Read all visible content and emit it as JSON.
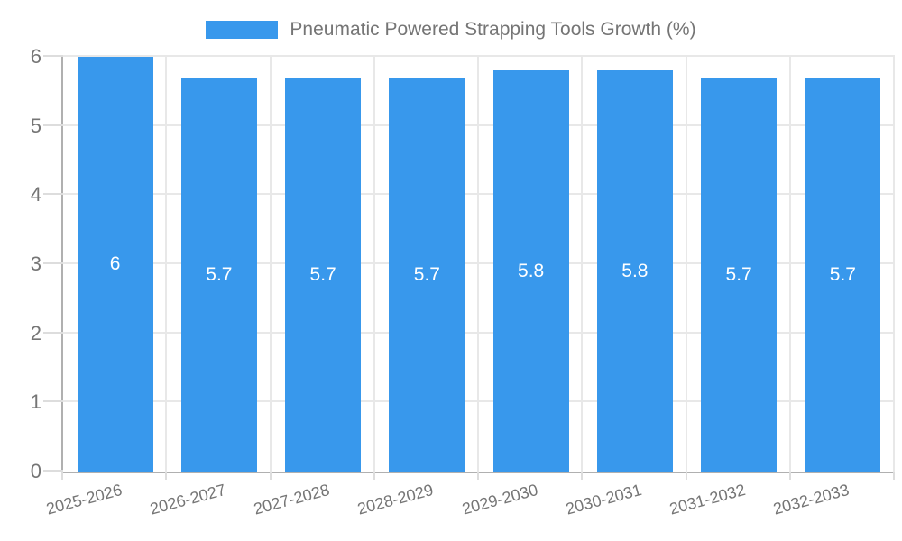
{
  "chart_data": {
    "type": "bar",
    "title": "",
    "legend": {
      "label": "Pneumatic Powered Strapping Tools Growth (%)",
      "position": "top"
    },
    "categories": [
      "2025-2026",
      "2026-2027",
      "2027-2028",
      "2028-2029",
      "2029-2030",
      "2030-2031",
      "2031-2032",
      "2032-2033"
    ],
    "values": [
      6,
      5.7,
      5.7,
      5.7,
      5.8,
      5.8,
      5.7,
      5.7
    ],
    "value_labels": [
      "6",
      "5.7",
      "5.7",
      "5.7",
      "5.8",
      "5.8",
      "5.7",
      "5.7"
    ],
    "xlabel": "",
    "ylabel": "",
    "ylim": [
      0,
      6
    ],
    "yticks": [
      "0",
      "1",
      "2",
      "3",
      "4",
      "5",
      "6"
    ],
    "grid": true,
    "x_label_rotation_deg": -15,
    "colors": {
      "bar": "#3898ec",
      "grid": "#e8e8e8",
      "axis": "#b0b0b0",
      "tick_label": "#757575",
      "value_label": "#ffffff",
      "background": "#ffffff"
    }
  }
}
